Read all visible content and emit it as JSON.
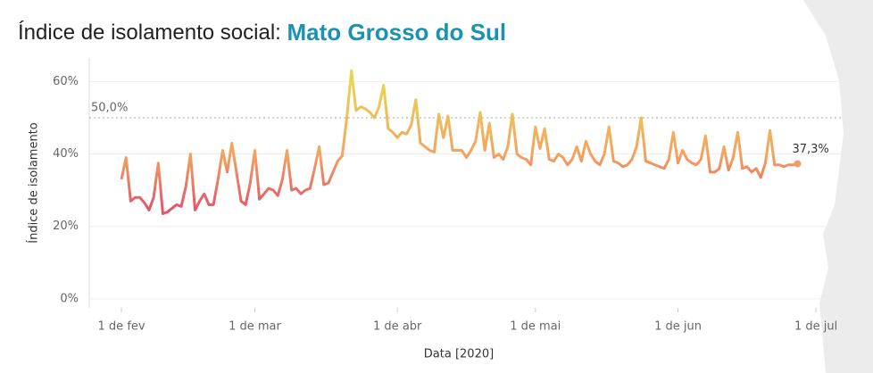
{
  "chart_data": {
    "type": "line",
    "title": "Índice de isolamento social: ",
    "subtitle": "Mato Grosso do Sul",
    "x_label": "Data [2020]",
    "y_label": "Índice de isolamento",
    "xlim": [
      "2020-01-25",
      "2020-07-07"
    ],
    "ylim": [
      -2.5,
      66.5
    ],
    "xticks": [
      {
        "value": "2020-02-01",
        "label": "1 de fev"
      },
      {
        "value": "2020-03-01",
        "label": "1 de mar"
      },
      {
        "value": "2020-04-01",
        "label": "1 de abr"
      },
      {
        "value": "2020-05-01",
        "label": "1 de mai"
      },
      {
        "value": "2020-06-01",
        "label": "1 de jun"
      },
      {
        "value": "2020-07-01",
        "label": "1 de jul"
      }
    ],
    "yticks": [
      {
        "value": 0,
        "label": "0%"
      },
      {
        "value": 20,
        "label": "20%"
      },
      {
        "value": 40,
        "label": "40%"
      },
      {
        "value": 60,
        "label": "60%"
      }
    ],
    "grid": true,
    "reference_line": {
      "value": 50,
      "label": "50,0%"
    },
    "color_scale": [
      [
        25,
        "#e2566c"
      ],
      [
        40,
        "#f4a25e"
      ],
      [
        60,
        "#e8d554"
      ]
    ],
    "start": "2020-02-01",
    "values": [
      33,
      39,
      27,
      28,
      28,
      26.5,
      24.5,
      28,
      37.5,
      23.5,
      24,
      25,
      26,
      25.5,
      31,
      40,
      24.5,
      27,
      29,
      26,
      26,
      33,
      41,
      35,
      43,
      35,
      27,
      26,
      32,
      41,
      27.5,
      29,
      30.5,
      30,
      28.5,
      33,
      41,
      30,
      30.5,
      29,
      30,
      30.5,
      36,
      42,
      31.5,
      32,
      35,
      38,
      39.5,
      50,
      63,
      52,
      53,
      52.5,
      51.5,
      50,
      53,
      59,
      47,
      46,
      44.5,
      46,
      45.5,
      48,
      55,
      43,
      42,
      41,
      40.5,
      51,
      44.5,
      50.5,
      41,
      41,
      41,
      39,
      41,
      43.5,
      51.5,
      41,
      48.5,
      39,
      40,
      38.5,
      42,
      51,
      40,
      39,
      38.5,
      37,
      47.5,
      41.5,
      47,
      38.5,
      38,
      40,
      39,
      37,
      38.5,
      42,
      38,
      43.5,
      40,
      38,
      37,
      40,
      47.5,
      38,
      37.5,
      36.5,
      37,
      38.5,
      42,
      50,
      38,
      37.5,
      37,
      36.5,
      36,
      38.5,
      46,
      37.5,
      41,
      38.5,
      37.5,
      37,
      38.5,
      45,
      35,
      35,
      36,
      42,
      35.5,
      39,
      46,
      36,
      36.5,
      35,
      36,
      33.5,
      37.5,
      46.5,
      37,
      37,
      36.5,
      37,
      37,
      37.3
    ],
    "end_label": "37,3%"
  }
}
